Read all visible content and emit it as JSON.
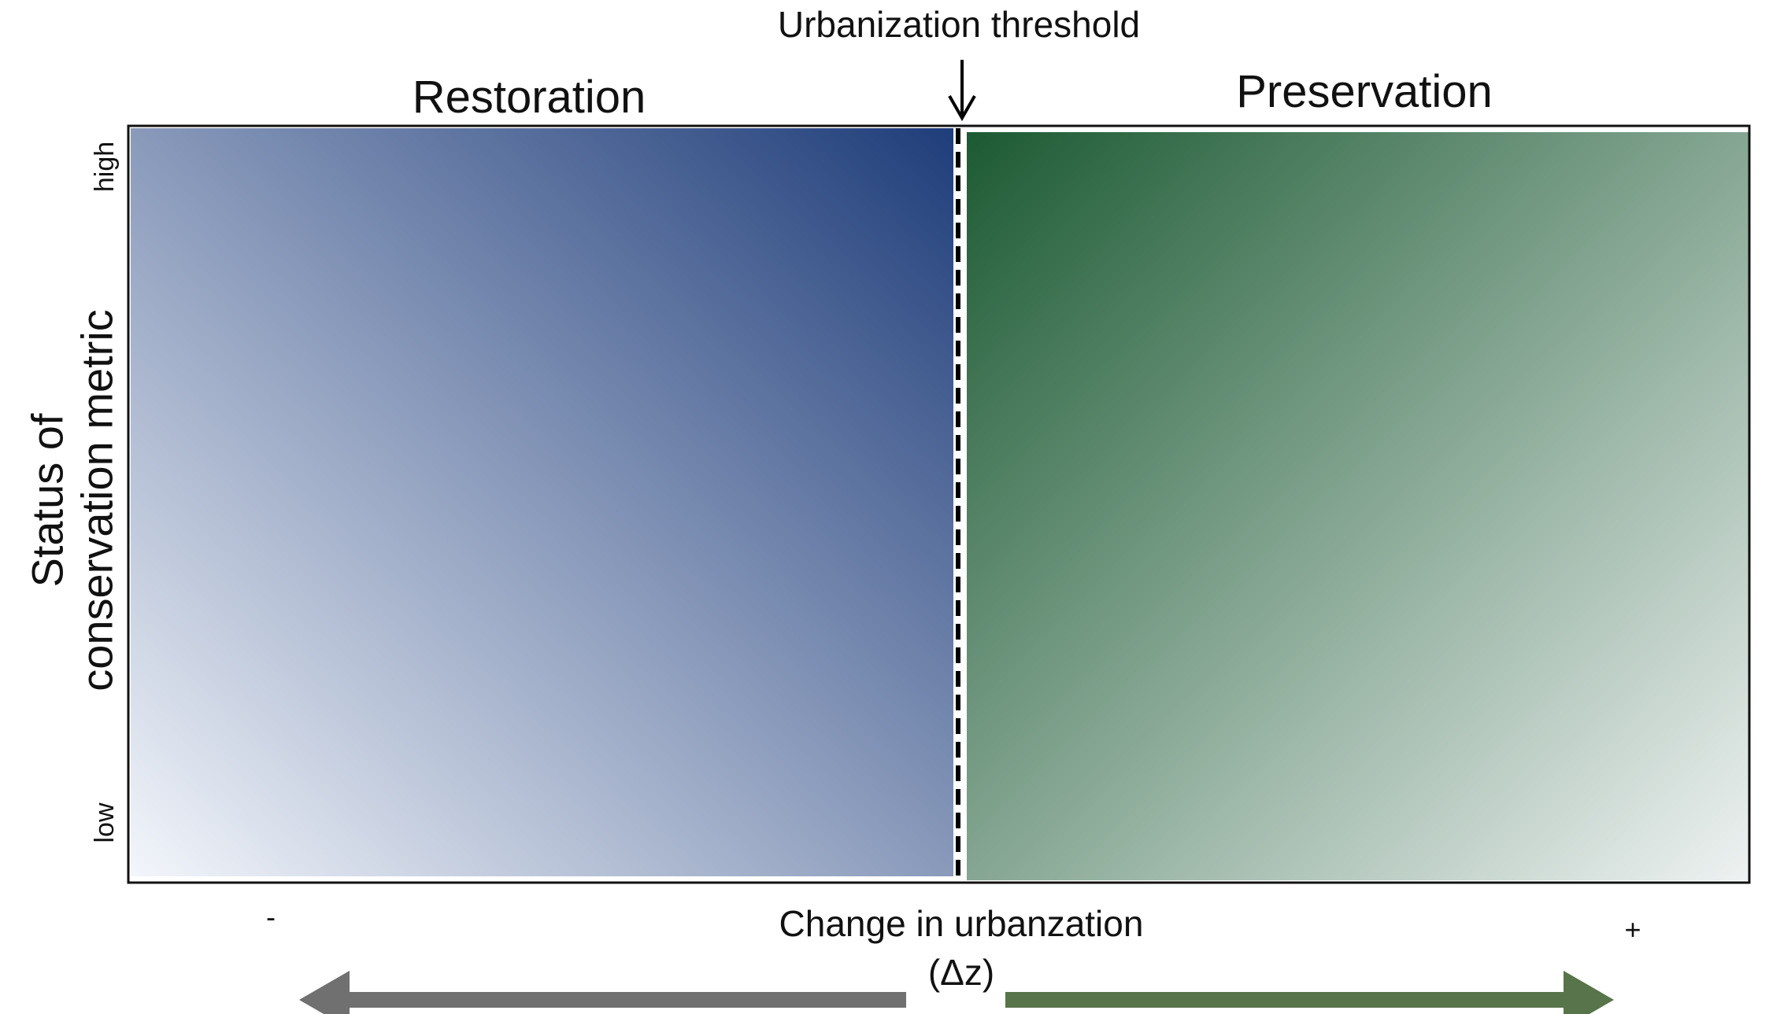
{
  "diagram": {
    "threshold_label": "Urbanization threshold",
    "left_region_title": "Restoration",
    "right_region_title": "Preservation",
    "yaxis_title_line1": "Status of",
    "yaxis_title_line2": "conservation metric",
    "ytick_high": "high",
    "ytick_low": "low",
    "xaxis_title_line1": "Change in urbanzation",
    "xaxis_title_line2": "(Δz)",
    "xtick_minus": "-",
    "xtick_plus": "+",
    "colors": {
      "restoration_dark": "#1f3d7a",
      "restoration_light": "#f3f6fb",
      "preservation_dark": "#1c5a33",
      "preservation_light": "#eef2f2",
      "left_arrow": "#707070",
      "right_arrow": "#58744a"
    }
  }
}
